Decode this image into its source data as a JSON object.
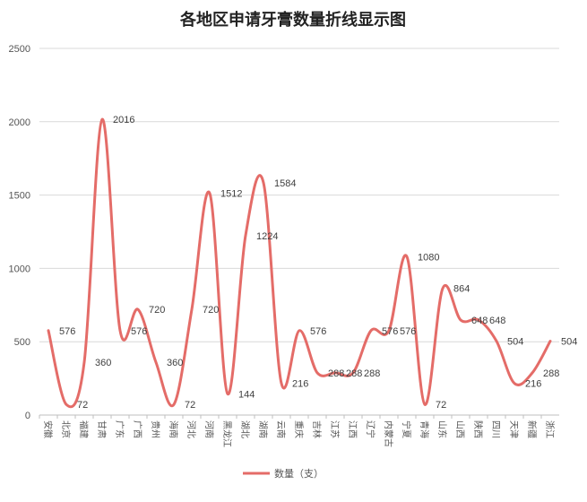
{
  "chart_data": {
    "type": "line",
    "title": "各地区申请牙膏数量折线显示图",
    "categories": [
      "安徽",
      "北京",
      "福建",
      "甘肃",
      "广东",
      "广西",
      "贵州",
      "海南",
      "河北",
      "河南",
      "黑龙江",
      "湖北",
      "湖南",
      "云南",
      "重庆",
      "吉林",
      "江苏",
      "江西",
      "辽宁",
      "内蒙古",
      "宁夏",
      "青海",
      "山东",
      "山西",
      "陕西",
      "四川",
      "天津",
      "新疆",
      "浙江"
    ],
    "series": [
      {
        "name": "数量（支）",
        "values": [
          576,
          72,
          360,
          2016,
          576,
          720,
          360,
          72,
          720,
          1512,
          144,
          1224,
          1584,
          216,
          576,
          288,
          288,
          288,
          576,
          576,
          1080,
          72,
          864,
          648,
          648,
          504,
          216,
          288,
          504
        ],
        "color": "#e46c68"
      }
    ],
    "ylim": [
      0,
      2500
    ],
    "yticks": [
      0,
      500,
      1000,
      1500,
      2000,
      2500
    ],
    "grid": true,
    "smooth": true,
    "legend_position": "bottom"
  }
}
